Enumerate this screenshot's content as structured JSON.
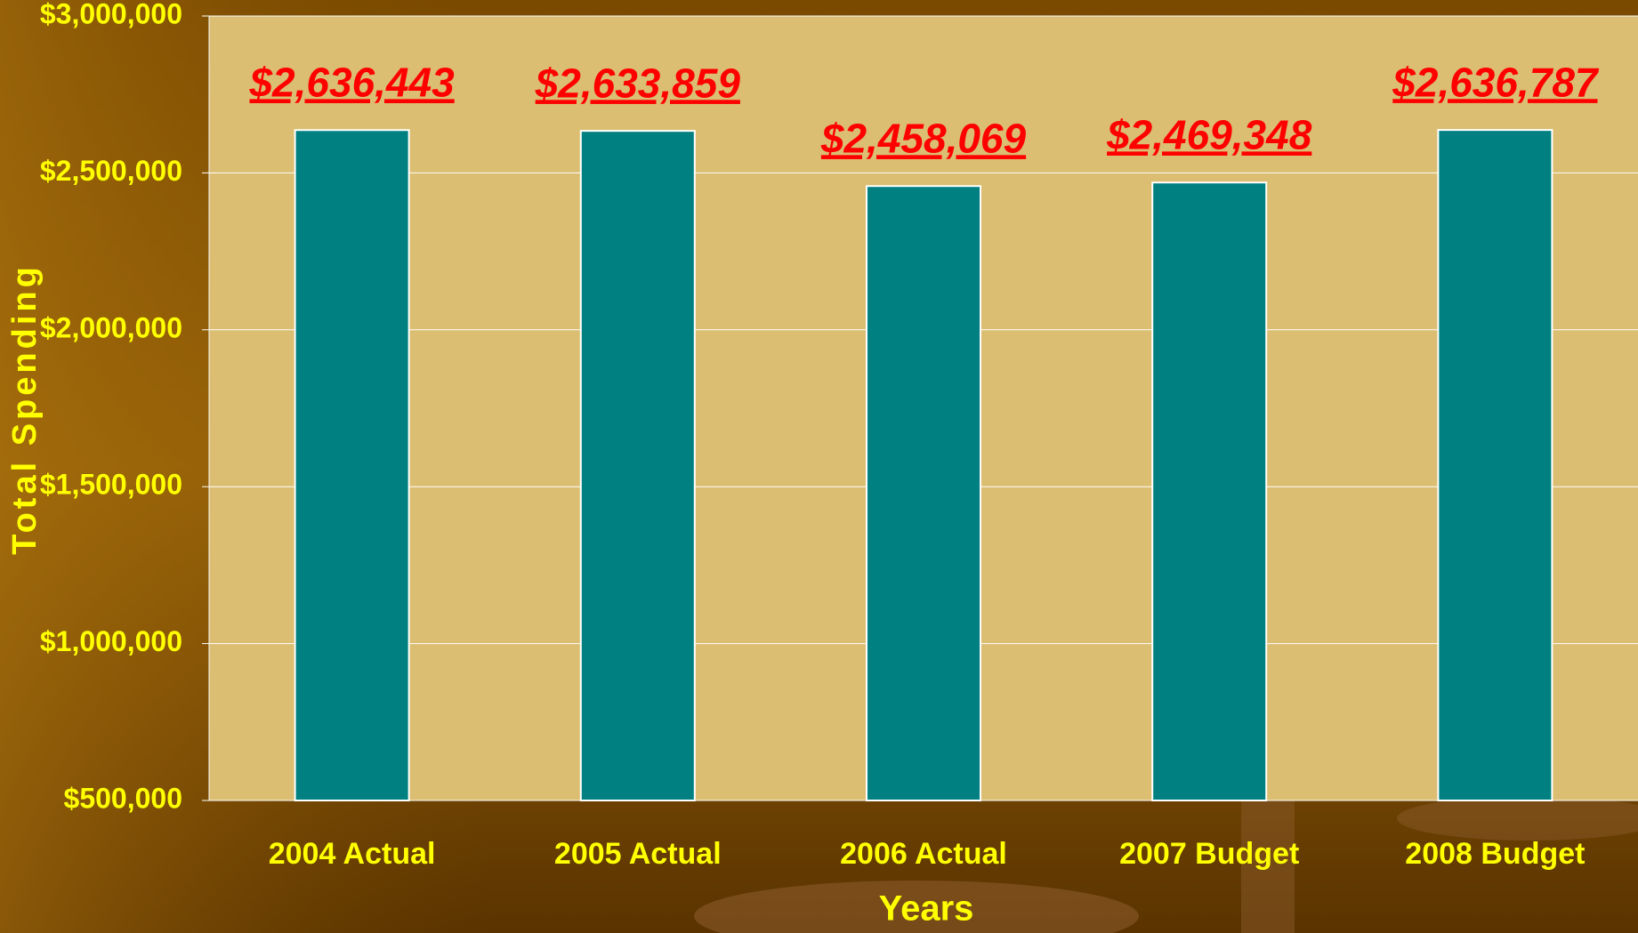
{
  "chart_data": {
    "type": "bar",
    "x_label": "Years",
    "y_label": "Total Spending",
    "categories": [
      "2004 Actual",
      "2005 Actual",
      "2006 Actual",
      "2007 Budget",
      "2008 Budget"
    ],
    "values": [
      2636443,
      2633859,
      2458069,
      2469348,
      2636787
    ],
    "value_labels": [
      "$2,636,443",
      "$2,633,859",
      "$2,458,069",
      "$2,469,348",
      "$2,636,787"
    ],
    "color": "#008080",
    "ylim": [
      500000,
      3000000
    ],
    "yticks": [
      {
        "value": 500000,
        "label": "$500,000"
      },
      {
        "value": 1000000,
        "label": "$1,000,000"
      },
      {
        "value": 1500000,
        "label": "$1,500,000"
      },
      {
        "value": 2000000,
        "label": "$2,000,000"
      },
      {
        "value": 2500000,
        "label": "$2,500,000"
      },
      {
        "value": 3000000,
        "label": "$3,000,000"
      }
    ],
    "grid": true
  }
}
